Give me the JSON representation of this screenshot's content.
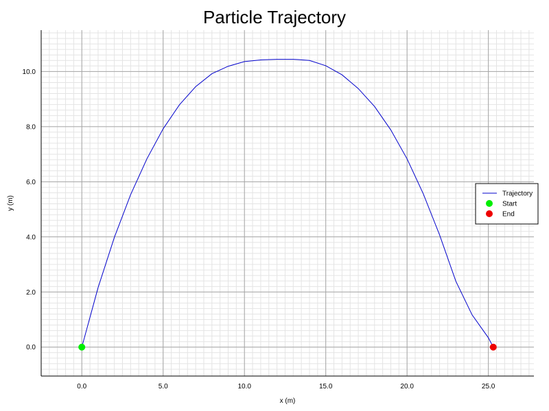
{
  "chart_data": {
    "type": "line",
    "title": "Particle Trajectory",
    "xlabel": "x (m)",
    "ylabel": "y (m)",
    "xlim": [
      -2.5,
      27.8
    ],
    "ylim": [
      -1.05,
      11.5
    ],
    "xticks": [
      0,
      5,
      10,
      15,
      20,
      25
    ],
    "yticks": [
      0,
      2,
      4,
      6,
      8,
      10
    ],
    "x_tick_labels": [
      "0.0",
      "5.0",
      "10.0",
      "15.0",
      "20.0",
      "25.0"
    ],
    "y_tick_labels": [
      "0.0",
      "2.0",
      "4.0",
      "6.0",
      "8.0",
      "10.0"
    ],
    "grid": true,
    "legend_position": "right",
    "series": [
      {
        "name": "Trajectory",
        "color": "#0000cc",
        "x": [
          0.0,
          1.0,
          2.0,
          3.0,
          4.0,
          5.0,
          6.0,
          7.0,
          8.0,
          9.0,
          10.0,
          11.0,
          12.0,
          13.0,
          13.3,
          14.0,
          15.0,
          16.0,
          17.0,
          18.0,
          19.0,
          20.0,
          21.0,
          22.0,
          23.0,
          24.0,
          25.0,
          25.3
        ],
        "y": [
          0.0,
          2.16,
          3.98,
          5.53,
          6.83,
          7.92,
          8.79,
          9.45,
          9.92,
          10.19,
          10.36,
          10.42,
          10.44,
          10.44,
          10.43,
          10.4,
          10.21,
          9.88,
          9.38,
          8.73,
          7.88,
          6.83,
          5.56,
          4.07,
          2.39,
          1.17,
          0.34,
          0.0
        ]
      },
      {
        "name": "Start",
        "color": "#00ee00",
        "x": [
          0.0
        ],
        "y": [
          0.0
        ]
      },
      {
        "name": "End",
        "color": "#ee0000",
        "x": [
          25.3
        ],
        "y": [
          0.0
        ]
      }
    ]
  }
}
